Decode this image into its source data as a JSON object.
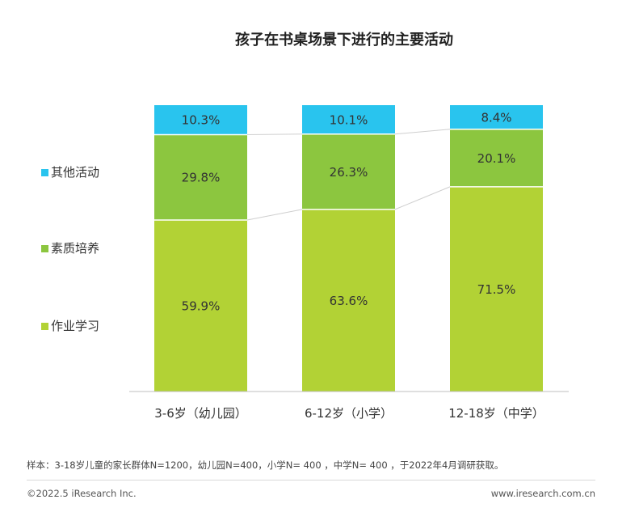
{
  "chart_data": {
    "type": "bar",
    "stacked": true,
    "title": "孩子在书桌场景下进行的主要活动",
    "categories": [
      "3-6岁（幼儿园）",
      "6-12岁（小学）",
      "12-18岁（中学）"
    ],
    "series": [
      {
        "name": "作业学习",
        "values": [
          59.9,
          63.6,
          71.5
        ],
        "labels": [
          "59.9%",
          "63.6%",
          "71.5%"
        ],
        "color": "#b2d235"
      },
      {
        "name": "素质培养",
        "values": [
          29.8,
          26.3,
          20.1
        ],
        "labels": [
          "29.8%",
          "26.3%",
          "20.1%"
        ],
        "color": "#8cc63f"
      },
      {
        "name": "其他活动",
        "values": [
          10.3,
          10.1,
          8.4
        ],
        "labels": [
          "10.3%",
          "10.1%",
          "8.4%"
        ],
        "color": "#29c4ee"
      }
    ],
    "legend_order": [
      "其他活动",
      "素质培养",
      "作业学习"
    ],
    "legend_position": "left",
    "ylim": [
      0,
      100
    ],
    "connector_lines": true,
    "grid": false
  },
  "footer": {
    "note": "样本：3-18岁儿童的家长群体N=1200，幼儿园N=400，小学N= 400 ，中学N= 400 ，于2022年4月调研获取。",
    "copyright": "©2022.5 iResearch Inc.",
    "website": "www.iresearch.com.cn"
  }
}
